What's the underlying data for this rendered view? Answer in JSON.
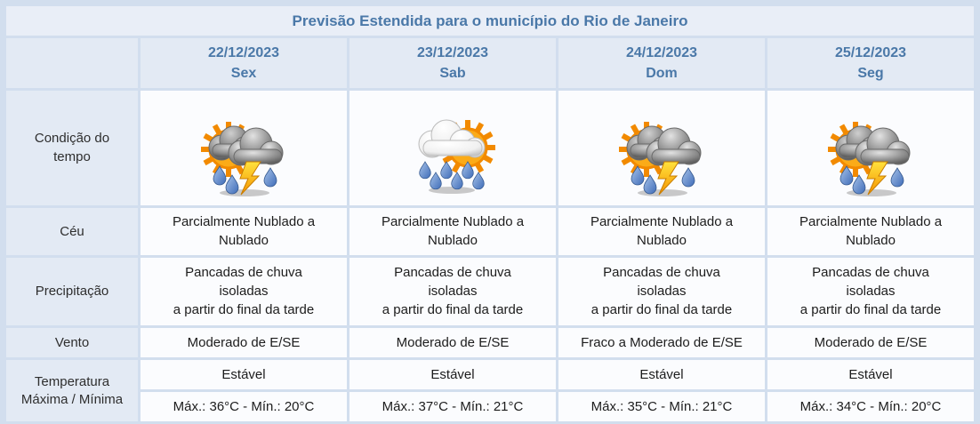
{
  "title": "Previsão Estendida para o município do Rio de Janeiro",
  "colors": {
    "accent_blue": "#4a78a8",
    "page_background": "#d2deee",
    "header_cell_background": "#e3eaf4",
    "data_cell_background": "#fbfcfe",
    "sun_orange": "#f28a00",
    "lightning_yellow": "#ffd428",
    "raindrop_blue": "#4a77c4"
  },
  "row_labels": {
    "condition": "Condição do\ntempo",
    "sky": "Céu",
    "precipitation": "Precipitação",
    "wind": "Vento",
    "temperature": "Temperatura\nMáxima / Mínima"
  },
  "days": [
    {
      "date": "22/12/2023",
      "weekday": "Sex",
      "icon": "sun-dark-clouds-rain-lightning-icon",
      "icon_type": "storm",
      "sky": "Parcialmente Nublado a\nNublado",
      "precipitation": "Pancadas de chuva\nisoladas\na partir do final da tarde",
      "wind": "Moderado de E/SE",
      "temp_trend": "Estável",
      "temp_range": "Máx.: 36°C - Mín.: 20°C"
    },
    {
      "date": "23/12/2023",
      "weekday": "Sab",
      "icon": "sun-clouds-rain-icon",
      "icon_type": "rain",
      "sky": "Parcialmente Nublado a\nNublado",
      "precipitation": "Pancadas de chuva\nisoladas\na partir do final da tarde",
      "wind": "Moderado de E/SE",
      "temp_trend": "Estável",
      "temp_range": "Máx.: 37°C - Mín.: 21°C"
    },
    {
      "date": "24/12/2023",
      "weekday": "Dom",
      "icon": "sun-dark-clouds-rain-lightning-icon",
      "icon_type": "storm",
      "sky": "Parcialmente Nublado a\nNublado",
      "precipitation": "Pancadas de chuva\nisoladas\na partir do final da tarde",
      "wind": "Fraco a Moderado de E/SE",
      "temp_trend": "Estável",
      "temp_range": "Máx.: 35°C - Mín.: 21°C"
    },
    {
      "date": "25/12/2023",
      "weekday": "Seg",
      "icon": "sun-dark-clouds-rain-lightning-icon",
      "icon_type": "storm",
      "sky": "Parcialmente Nublado a\nNublado",
      "precipitation": "Pancadas de chuva\nisoladas\na partir do final da tarde",
      "wind": "Moderado de E/SE",
      "temp_trend": "Estável",
      "temp_range": "Máx.: 34°C - Mín.: 20°C"
    }
  ]
}
